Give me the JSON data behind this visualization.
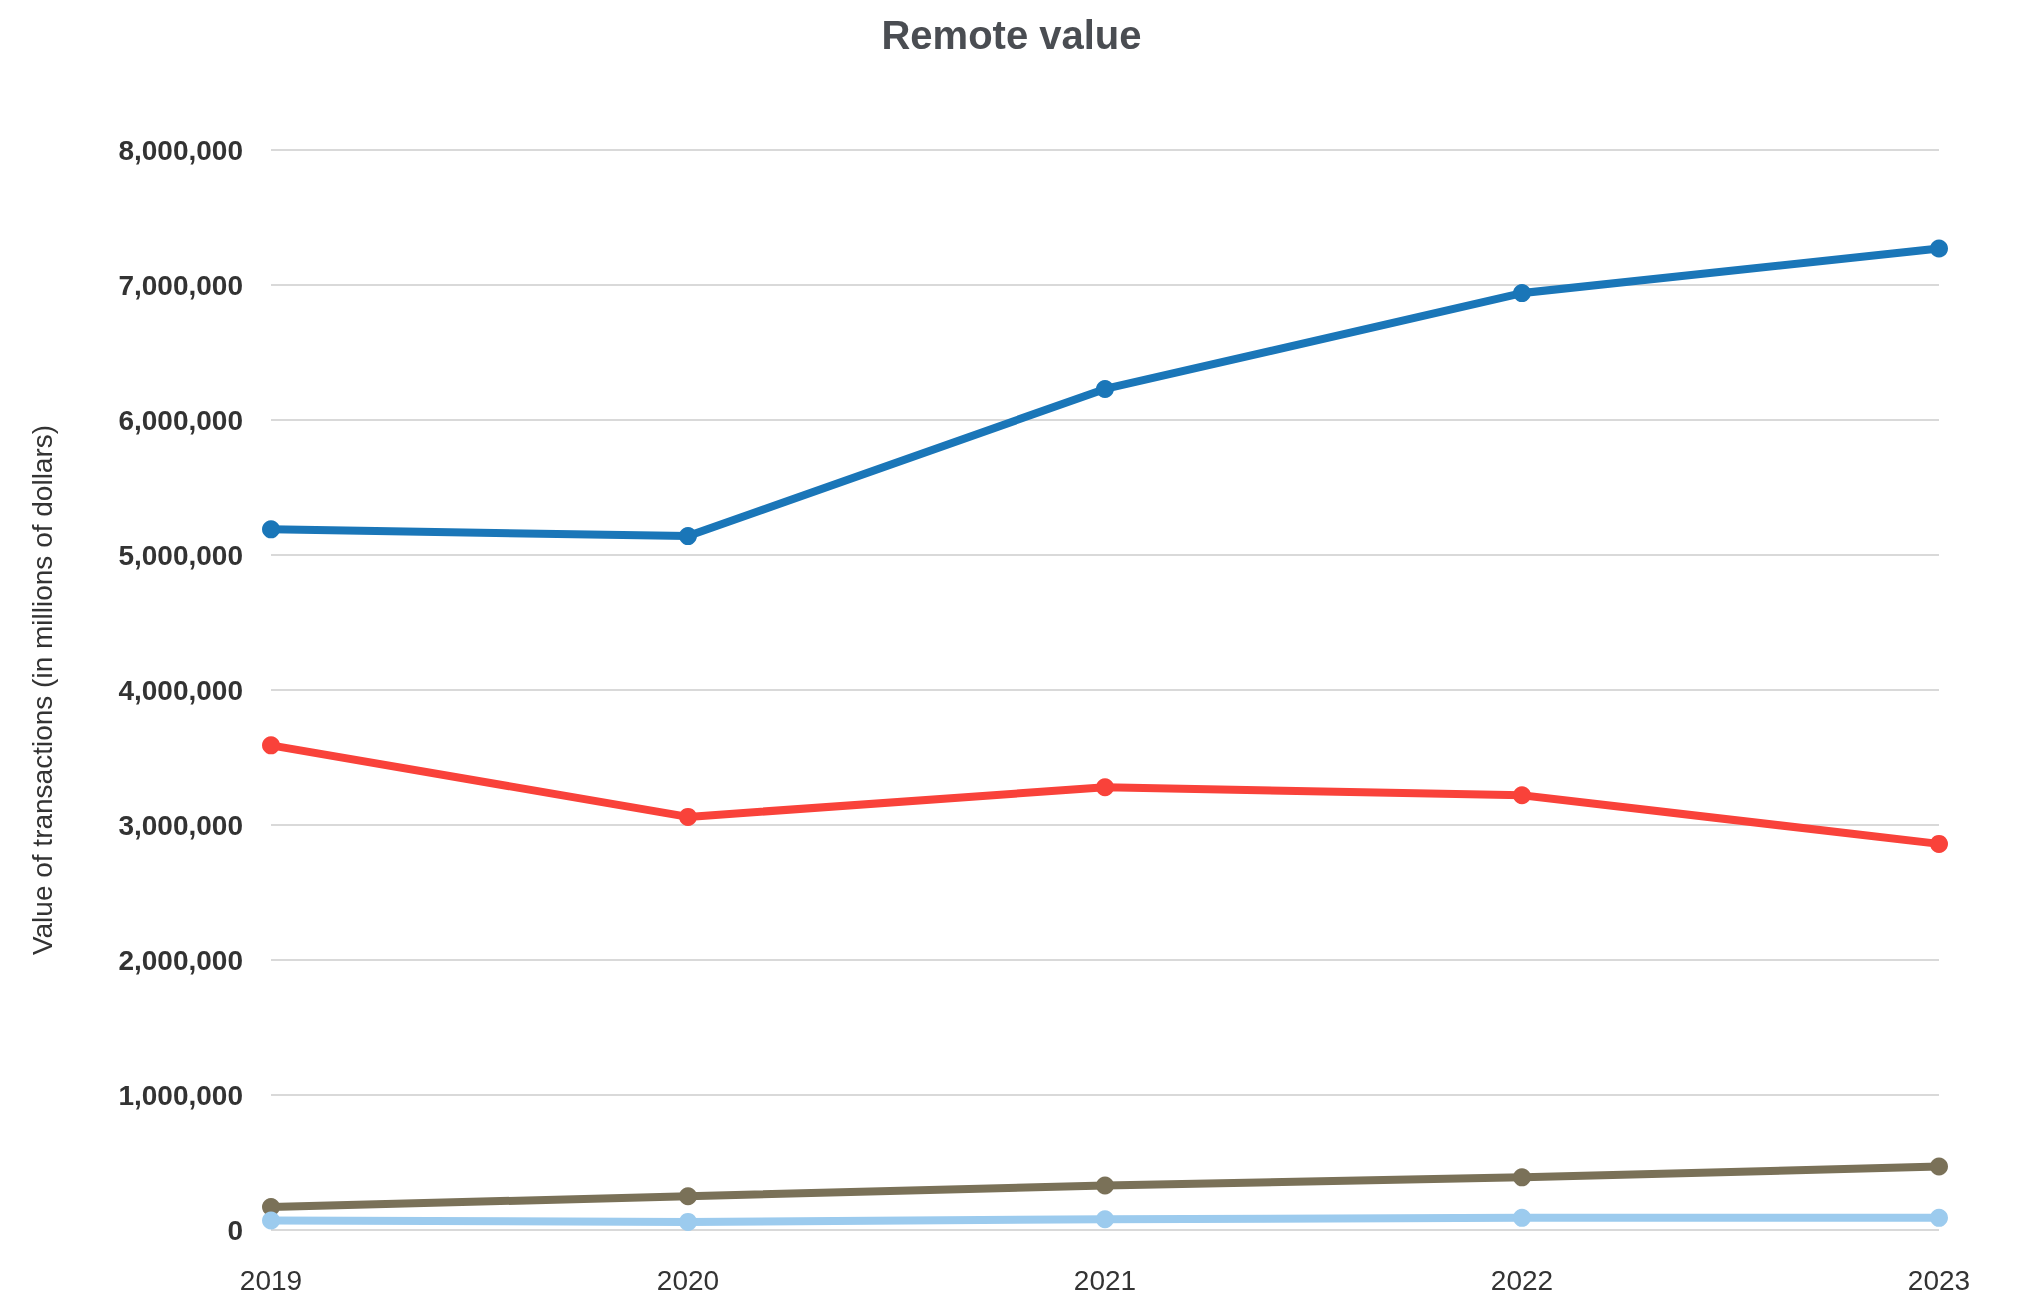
{
  "chart_data": {
    "type": "line",
    "title": "Remote value",
    "ylabel": "Value of transactions (in millions of dollars)",
    "categories": [
      "2019",
      "2020",
      "2021",
      "2022",
      "2023"
    ],
    "series": [
      {
        "color": "#1a76b8",
        "values": [
          5190000,
          5140000,
          6230000,
          6940000,
          7270000
        ]
      },
      {
        "color": "#f9423a",
        "values": [
          3590000,
          3060000,
          3280000,
          3220000,
          2860000
        ]
      },
      {
        "color": "#7a7158",
        "values": [
          170000,
          250000,
          330000,
          390000,
          470000
        ]
      },
      {
        "color": "#9ccbee",
        "values": [
          70000,
          60000,
          80000,
          90000,
          90000
        ]
      }
    ],
    "ylim": [
      0,
      8000000
    ],
    "yticks": [
      0,
      {
        "value": 1000000,
        "label": "1,000,000"
      },
      {
        "value": 2000000,
        "label": "2,000,000"
      },
      {
        "value": 3000000,
        "label": "3,000,000"
      },
      {
        "value": 4000000,
        "label": "4,000,000"
      },
      {
        "value": 5000000,
        "label": "5,000,000"
      },
      {
        "value": 6000000,
        "label": "6,000,000"
      },
      {
        "value": 7000000,
        "label": "7,000,000"
      },
      {
        "value": 8000000,
        "label": "8,000,000"
      }
    ],
    "grid": "y",
    "marker": "circle",
    "line_style": "solid"
  }
}
